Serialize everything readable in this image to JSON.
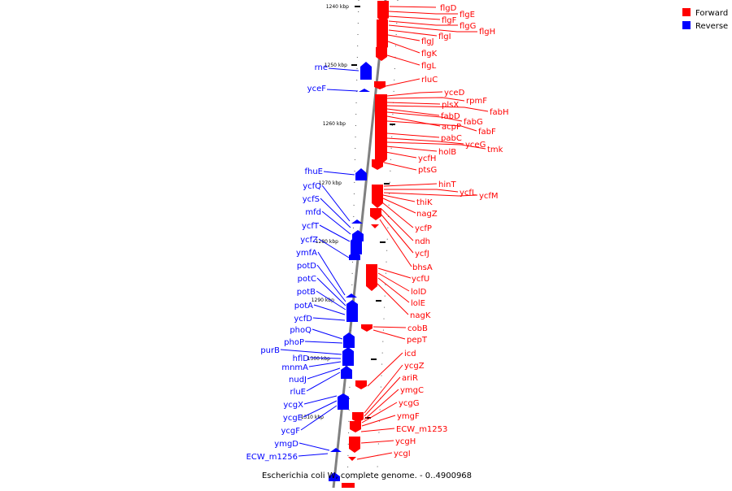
{
  "caption": "Escherichia coli W, complete genome. - 0..4900968",
  "legend": [
    {
      "label": "Forward",
      "color": "#ff0000"
    },
    {
      "label": "Reverse",
      "color": "#0000ff"
    }
  ],
  "colors": {
    "forward": "#ff0000",
    "reverse": "#0000ff",
    "axis": "#808080"
  },
  "ticks": [
    "1240 kbp",
    "1250 kbp",
    "1260 kbp",
    "1270 kbp",
    "1280 kbp",
    "1290 kbp",
    "1300 kbp",
    "1310 kbp"
  ],
  "forward_genes": [
    "flgD",
    "flgE",
    "flgF",
    "flgG",
    "flgH",
    "flgI",
    "flgJ",
    "flgK",
    "flgL",
    "rluC",
    "yceD",
    "rpmF",
    "plsX",
    "fabH",
    "fabD",
    "fabG",
    "acpP",
    "fabF",
    "pabC",
    "yceG",
    "tmk",
    "holB",
    "ycfH",
    "ptsG",
    "hinT",
    "ycfL",
    "ycfM",
    "thiK",
    "nagZ",
    "ycfP",
    "ndh",
    "ycfJ",
    "bhsA",
    "ycfU",
    "lolD",
    "lolE",
    "nagK",
    "cobB",
    "pepT",
    "icd",
    "ycgZ",
    "ariR",
    "ymgC",
    "ycgG",
    "ymgF",
    "ECW_m1253",
    "ycgH",
    "ycgI"
  ],
  "reverse_genes": [
    "rne",
    "yceF",
    "fhuE",
    "ycfQ",
    "ycfS",
    "mfd",
    "ycfT",
    "ycfZ",
    "ymfA",
    "potD",
    "potC",
    "potB",
    "potA",
    "ycfD",
    "phoQ",
    "phoP",
    "purB",
    "hflD",
    "mnmA",
    "nudJ",
    "rluE",
    "ycgX",
    "ycgE",
    "ycgF",
    "ymgD",
    "ECW_m1256"
  ]
}
